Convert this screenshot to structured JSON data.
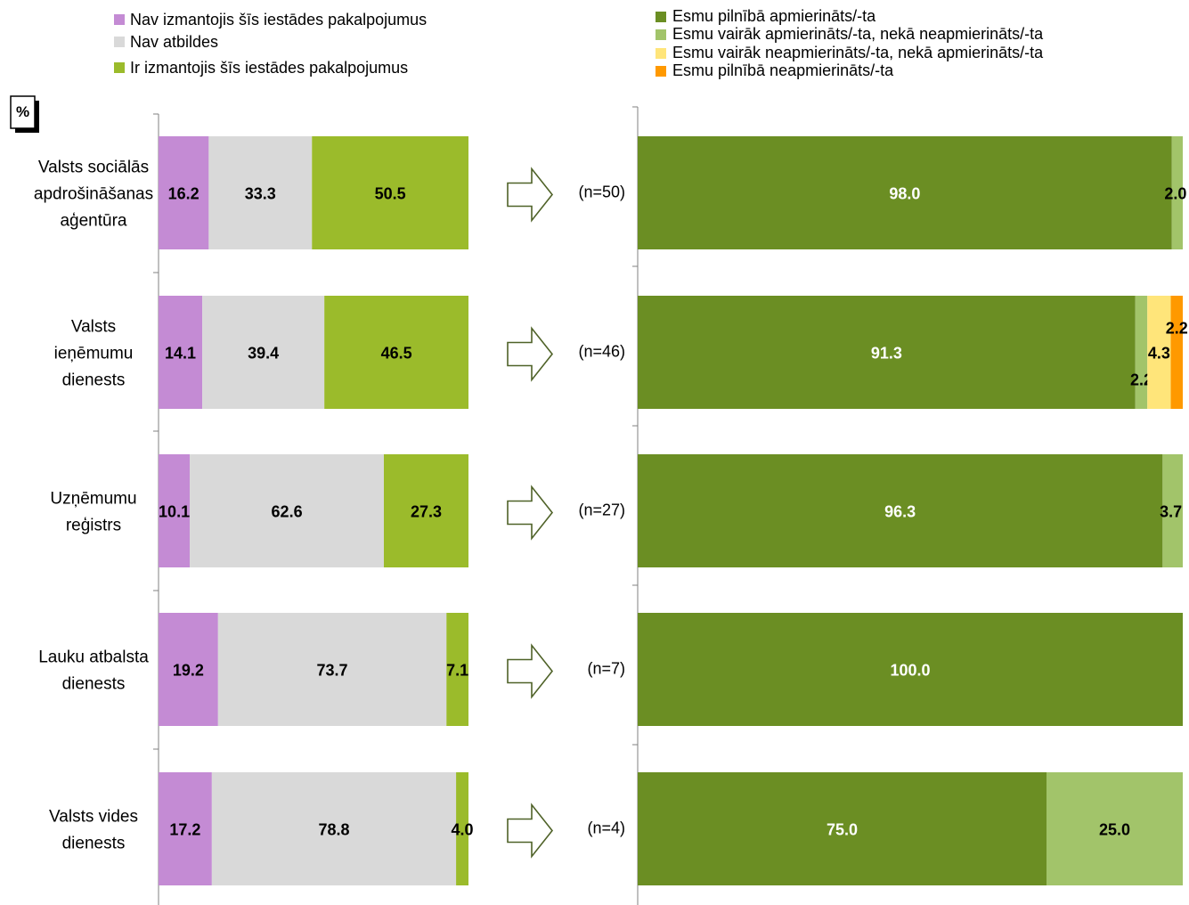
{
  "left_legend": [
    {
      "label": "Nav izmantojis šīs iestādes pakalpojumus",
      "color": "#C48BD4"
    },
    {
      "label": "Nav atbildes",
      "color": "#D9D9D9"
    },
    {
      "label": "Ir izmantojis šīs iestādes pakalpojumus",
      "color": "#9BBB2B"
    }
  ],
  "right_legend": [
    {
      "label": "Esmu pilnībā apmierināts/-ta",
      "color": "#6B8E23"
    },
    {
      "label": "Esmu vairāk apmierināts/-ta, nekā neapmierināts/-ta",
      "color": "#A2C46A"
    },
    {
      "label": "Esmu vairāk neapmierināts/-ta, nekā apmierināts/-ta",
      "color": "#FFE57A"
    },
    {
      "label": "Esmu pilnībā neapmierināts/-ta",
      "color": "#FF9900"
    }
  ],
  "unit_label": "%",
  "chart_data": [
    {
      "type": "bar",
      "stacked": true,
      "orientation": "horizontal",
      "categories": [
        [
          "Valsts sociālās",
          "apdrošināšanas",
          "aģentūra"
        ],
        [
          "Valsts",
          "ieņēmumu",
          "dienests"
        ],
        [
          "Uzņēmumu",
          "reģistrs"
        ],
        [
          "Lauku atbalsta",
          "dienests"
        ],
        [
          "Valsts vides",
          "dienests"
        ]
      ],
      "series": [
        {
          "name": "Nav izmantojis šīs iestādes pakalpojumus",
          "values": [
            "16.2",
            "14.1",
            "10.1",
            "19.2",
            "17.2"
          ]
        },
        {
          "name": "Nav atbildes",
          "values": [
            "33.3",
            "39.4",
            "62.6",
            "73.7",
            "78.8"
          ]
        },
        {
          "name": "Ir izmantojis šīs iestādes pakalpojumus",
          "values": [
            "50.5",
            "46.5",
            "27.3",
            "7.1",
            "4.0"
          ]
        }
      ],
      "xlim": [
        0,
        100
      ]
    },
    {
      "type": "bar",
      "stacked": true,
      "orientation": "horizontal",
      "n_labels": [
        "(n=50)",
        "(n=46)",
        "(n=27)",
        "(n=7)",
        "(n=4)"
      ],
      "series": [
        {
          "name": "Esmu pilnībā apmierināts/-ta",
          "values": [
            "98.0",
            "91.3",
            "96.3",
            "100.0",
            "75.0"
          ]
        },
        {
          "name": "Esmu vairāk apmierināts/-ta, nekā neapmierināts/-ta",
          "values": [
            "2.0",
            "2.2",
            "3.7",
            "0",
            "25.0"
          ]
        },
        {
          "name": "Esmu vairāk neapmierināts/-ta, nekā apmierināts/-ta",
          "values": [
            "0",
            "4.3",
            "0",
            "0",
            "0"
          ]
        },
        {
          "name": "Esmu pilnībā neapmierināts/-ta",
          "values": [
            "0",
            "2.2",
            "0",
            "0",
            "0"
          ]
        }
      ],
      "xlim": [
        0,
        100
      ]
    }
  ]
}
